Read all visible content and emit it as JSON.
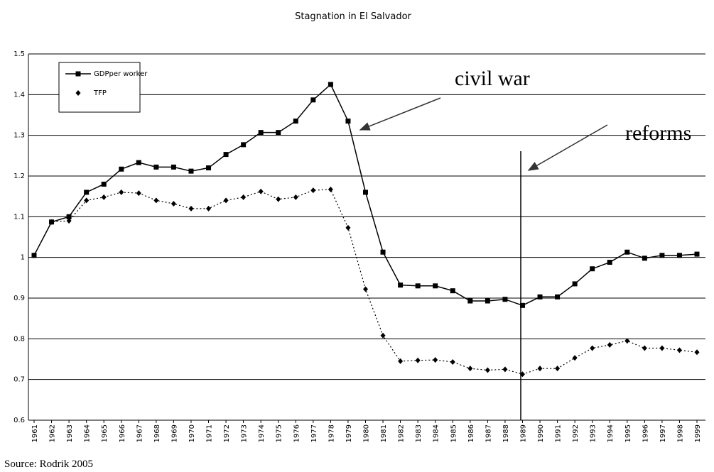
{
  "chart_data": {
    "type": "line",
    "title": "Stagnation in El Salvador",
    "source": "Source: Rodrik 2005",
    "categories": [
      "1961",
      "1962",
      "1963",
      "1964",
      "1965",
      "1966",
      "1967",
      "1968",
      "1969",
      "1970",
      "1971",
      "1972",
      "1973",
      "1974",
      "1975",
      "1976",
      "1977",
      "1978",
      "1979",
      "1980",
      "1981",
      "1982",
      "1983",
      "1984",
      "1985",
      "1986",
      "1987",
      "1988",
      "1989",
      "1990",
      "1991",
      "1992",
      "1993",
      "1994",
      "1995",
      "1996",
      "1997",
      "1998",
      "1999"
    ],
    "series": [
      {
        "name": "GDPper worker",
        "color": "#000000",
        "marker": "square",
        "dash": "solid",
        "values": [
          1.005,
          1.087,
          1.1,
          1.16,
          1.18,
          1.217,
          1.233,
          1.222,
          1.222,
          1.212,
          1.22,
          1.253,
          1.277,
          1.307,
          1.307,
          1.335,
          1.387,
          1.425,
          1.335,
          1.16,
          1.013,
          0.932,
          0.93,
          0.93,
          0.918,
          0.893,
          0.893,
          0.897,
          0.882,
          0.903,
          0.903,
          0.935,
          0.972,
          0.988,
          1.013,
          0.998,
          1.005,
          1.005,
          1.008
        ]
      },
      {
        "name": "TFP",
        "color": "#000000",
        "marker": "diamond",
        "dash": "dotted",
        "values": [
          1.005,
          1.087,
          1.09,
          1.14,
          1.148,
          1.16,
          1.158,
          1.14,
          1.132,
          1.12,
          1.12,
          1.14,
          1.148,
          1.162,
          1.143,
          1.148,
          1.165,
          1.167,
          1.073,
          0.922,
          0.808,
          0.745,
          0.747,
          0.748,
          0.743,
          0.727,
          0.723,
          0.725,
          0.713,
          0.727,
          0.727,
          0.753,
          0.777,
          0.785,
          0.795,
          0.777,
          0.777,
          0.772,
          0.767
        ]
      }
    ],
    "ylim": [
      0.6,
      1.5
    ],
    "yticks": [
      0.6,
      0.7,
      0.8,
      0.9,
      1,
      1.1,
      1.2,
      1.3,
      1.4,
      1.5
    ],
    "grid": true,
    "legend": "top-left",
    "annotations": [
      "civil war",
      "reforms"
    ]
  }
}
